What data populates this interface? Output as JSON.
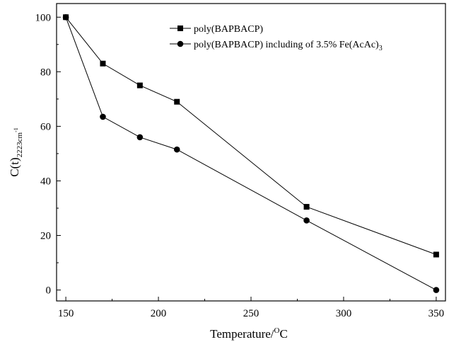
{
  "chart_data": {
    "type": "line",
    "xlabel": "Temperature/",
    "xlabel_super": "O",
    "xlabel_tail": "C",
    "ylabel": "C(t)",
    "ylabel_sub": "2223cm",
    "ylabel_subsup": "-1",
    "xlim": [
      145,
      355
    ],
    "ylim": [
      -4,
      105
    ],
    "xticks": [
      150,
      200,
      250,
      300,
      350
    ],
    "xtick_labels": [
      "150",
      "200",
      "250",
      "300",
      "350"
    ],
    "yticks": [
      0,
      20,
      40,
      60,
      80,
      100
    ],
    "ytick_labels": [
      "0",
      "20",
      "40",
      "60",
      "80",
      "100"
    ],
    "grid": false,
    "legend_position": "top-center",
    "series": [
      {
        "name": "poly(BAPBACP)",
        "marker": "square",
        "x": [
          150,
          170,
          190,
          210,
          280,
          350
        ],
        "y": [
          100,
          83,
          75,
          69,
          30.5,
          13
        ]
      },
      {
        "name": "poly(BAPBACP) including of 3.5% Fe(AcAc)",
        "name_sub": "3",
        "marker": "circle",
        "x": [
          150,
          170,
          190,
          210,
          280,
          350
        ],
        "y": [
          100,
          63.5,
          56,
          51.5,
          25.5,
          0
        ]
      }
    ]
  }
}
